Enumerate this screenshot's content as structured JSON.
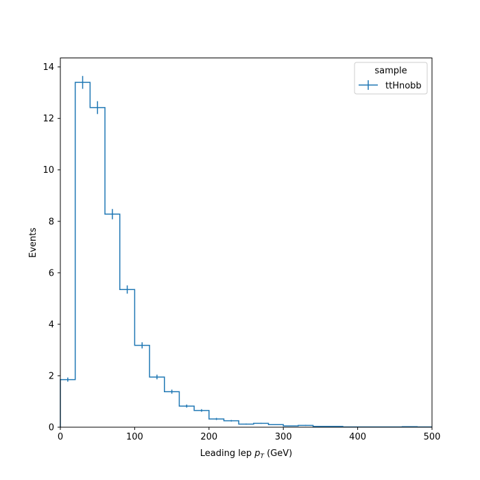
{
  "chart_data": {
    "type": "histogram-step",
    "xlabel_prefix": "Leading lep ",
    "xlabel_var": "p",
    "xlabel_sub": "T",
    "xlabel_suffix": " (GeV)",
    "ylabel": "Events",
    "xlim": [
      0,
      500
    ],
    "ylim": [
      0,
      14.35
    ],
    "xticks": [
      0,
      100,
      200,
      300,
      400,
      500
    ],
    "yticks": [
      0,
      2,
      4,
      6,
      8,
      10,
      12,
      14
    ],
    "legend_title": "sample",
    "legend_position": "top-right",
    "grid": false,
    "color": "#1f77b4",
    "series": [
      {
        "name": "ttHnobb",
        "bin_edges": [
          0,
          20,
          40,
          60,
          80,
          100,
          120,
          140,
          160,
          180,
          200,
          220,
          240,
          260,
          280,
          300,
          320,
          340,
          360,
          380,
          400,
          420,
          440,
          460,
          480,
          500
        ],
        "values": [
          1.85,
          13.4,
          12.42,
          8.28,
          5.35,
          3.18,
          1.95,
          1.38,
          0.82,
          0.65,
          0.32,
          0.25,
          0.12,
          0.15,
          0.1,
          0.05,
          0.07,
          0.03,
          0.03,
          0.01,
          0.01,
          0.01,
          0.01,
          0.02,
          0.01
        ],
        "errors": [
          0.08,
          0.25,
          0.25,
          0.2,
          0.16,
          0.12,
          0.09,
          0.08,
          0.06,
          0.05,
          0.04,
          0.03,
          0.02,
          0.02,
          0.02,
          0.01,
          0.02,
          0.01,
          0.01,
          0.005,
          0.005,
          0.005,
          0.005,
          0.01,
          0.005
        ]
      }
    ]
  }
}
